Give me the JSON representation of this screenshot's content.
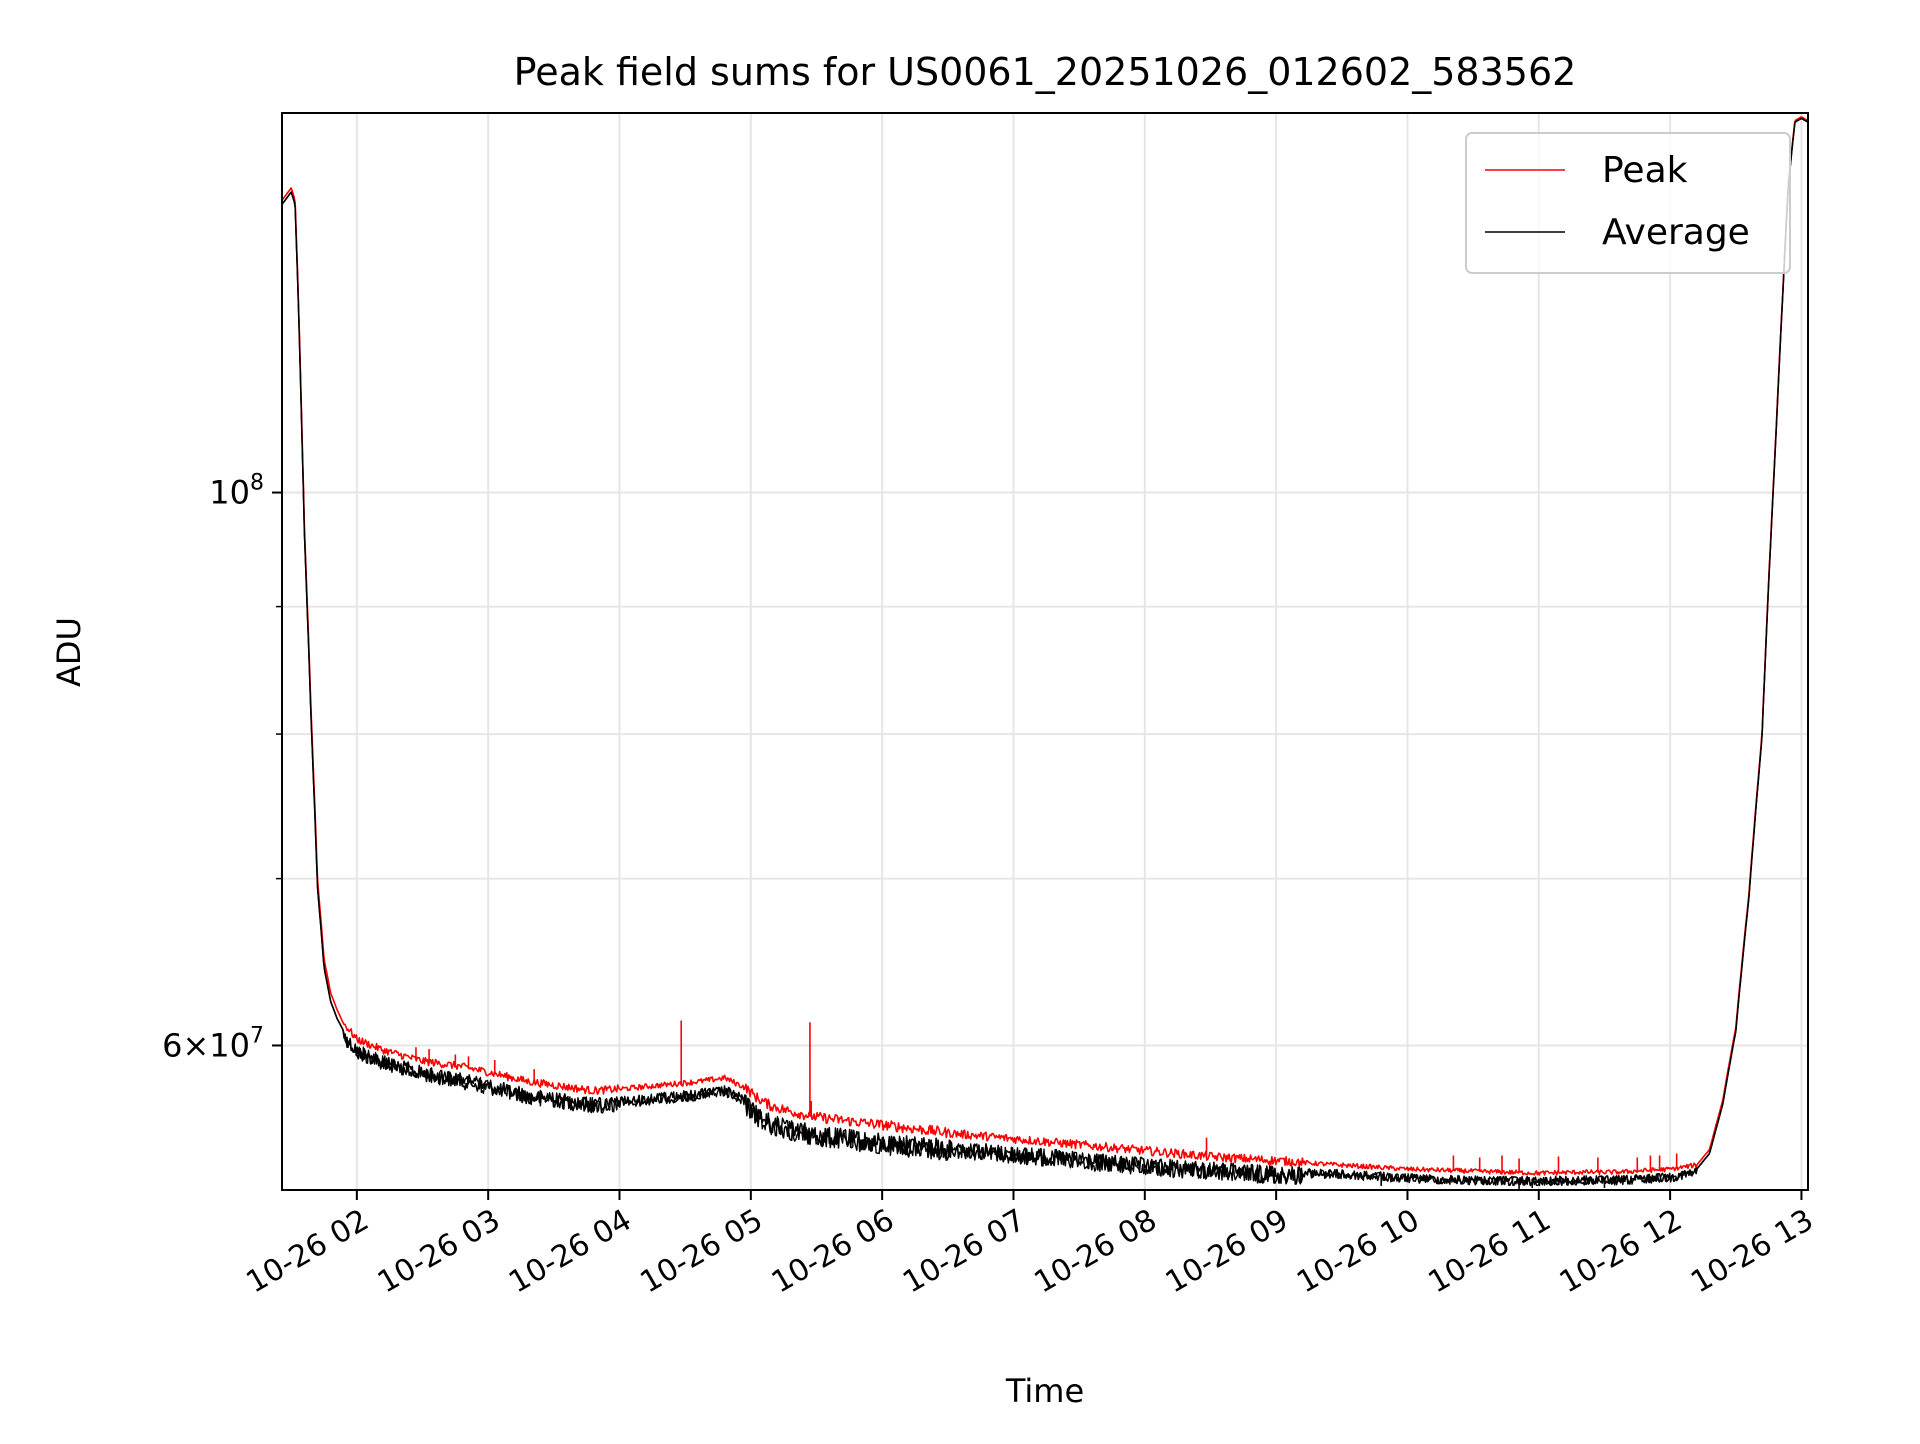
{
  "chart_data": {
    "type": "line",
    "title": "Peak field sums for US0061_20251026_012602_583562",
    "xlabel": "Time",
    "ylabel": "ADU",
    "yscale": "log",
    "xlim": [
      1.43,
      13.05
    ],
    "ylim": [
      52500000,
      142000000
    ],
    "grid": true,
    "legend_position": "top-right",
    "x_ticks": [
      {
        "value": 2,
        "label": "10-26 02"
      },
      {
        "value": 3,
        "label": "10-26 03"
      },
      {
        "value": 4,
        "label": "10-26 04"
      },
      {
        "value": 5,
        "label": "10-26 05"
      },
      {
        "value": 6,
        "label": "10-26 06"
      },
      {
        "value": 7,
        "label": "10-26 07"
      },
      {
        "value": 8,
        "label": "10-26 08"
      },
      {
        "value": 9,
        "label": "10-26 09"
      },
      {
        "value": 10,
        "label": "10-26 10"
      },
      {
        "value": 11,
        "label": "10-26 11"
      },
      {
        "value": 12,
        "label": "10-26 12"
      },
      {
        "value": 13,
        "label": "10-26 13"
      }
    ],
    "y_ticks_major": [
      {
        "value": 100000000,
        "base": "10",
        "exp": "8"
      },
      {
        "value": 60000000,
        "base": "6×10",
        "exp": "7"
      }
    ],
    "y_ticks_minor": [
      70000000,
      80000000,
      90000000
    ],
    "series": [
      {
        "name": "Peak",
        "color": "#ff0000",
        "x": [
          1.43,
          1.5,
          1.53,
          1.56,
          1.6,
          1.65,
          1.7,
          1.75,
          1.8,
          1.85,
          1.9,
          2.0,
          2.2,
          2.5,
          2.8,
          3.0,
          3.3,
          3.6,
          3.8,
          4.0,
          4.3,
          4.6,
          4.8,
          4.95,
          5.05,
          5.15,
          5.3,
          5.5,
          6.0,
          6.5,
          7.0,
          7.5,
          8.0,
          8.5,
          9.0,
          9.5,
          10.0,
          10.5,
          11.0,
          11.3,
          11.6,
          12.0,
          12.2,
          12.3,
          12.4,
          12.5,
          12.6,
          12.7,
          12.75,
          12.8,
          12.85,
          12.9,
          12.95,
          13.0,
          13.05
        ],
        "y": [
          131000000,
          132500000,
          131000000,
          117000000,
          97000000,
          82000000,
          70000000,
          65000000,
          63000000,
          62000000,
          61200000,
          60300000,
          59700000,
          59100000,
          58800000,
          58500000,
          58000000,
          57700000,
          57500000,
          57600000,
          57800000,
          58000000,
          58200000,
          57700000,
          57100000,
          56700000,
          56400000,
          56100000,
          55700000,
          55300000,
          55000000,
          54700000,
          54400000,
          54100000,
          53900000,
          53700000,
          53500000,
          53400000,
          53300000,
          53350000,
          53350000,
          53500000,
          53700000,
          54500000,
          57000000,
          61000000,
          69000000,
          80000000,
          92000000,
          104000000,
          118000000,
          133000000,
          141000000,
          141500000,
          141000000
        ]
      },
      {
        "name": "Average",
        "color": "#000000",
        "x": [
          1.43,
          1.5,
          1.53,
          1.56,
          1.6,
          1.65,
          1.7,
          1.75,
          1.8,
          1.85,
          1.9,
          2.0,
          2.2,
          2.5,
          2.8,
          3.0,
          3.3,
          3.6,
          3.8,
          4.0,
          4.3,
          4.6,
          4.8,
          4.95,
          5.05,
          5.15,
          5.3,
          5.5,
          6.0,
          6.5,
          7.0,
          7.5,
          8.0,
          8.5,
          9.0,
          9.5,
          10.0,
          10.5,
          11.0,
          11.3,
          11.6,
          12.0,
          12.2,
          12.3,
          12.4,
          12.5,
          12.6,
          12.7,
          12.75,
          12.8,
          12.85,
          12.9,
          12.95,
          13.0,
          13.05
        ],
        "y": [
          130500000,
          132000000,
          130500000,
          116500000,
          96500000,
          81500000,
          69500000,
          64500000,
          62500000,
          61500000,
          60800000,
          59900000,
          59300000,
          58700000,
          58300000,
          58000000,
          57500000,
          57200000,
          57000000,
          57100000,
          57300000,
          57500000,
          57700000,
          57200000,
          56500000,
          56100000,
          55800000,
          55500000,
          55100000,
          54800000,
          54500000,
          54200000,
          53900000,
          53700000,
          53500000,
          53400000,
          53200000,
          53100000,
          53050000,
          53100000,
          53100000,
          53250000,
          53500000,
          54300000,
          56800000,
          60800000,
          68800000,
          79800000,
          91800000,
          103800000,
          117800000,
          132800000,
          140800000,
          141300000,
          140800000
        ]
      }
    ],
    "noise": [
      {
        "x0": 1.9,
        "x1": 4.0,
        "amp": 700000
      },
      {
        "x0": 4.0,
        "x1": 4.95,
        "amp": 500000
      },
      {
        "x0": 4.95,
        "x1": 6.5,
        "amp": 900000
      },
      {
        "x0": 6.5,
        "x1": 9.2,
        "amp": 750000
      },
      {
        "x0": 9.2,
        "x1": 12.2,
        "amp": 380000
      }
    ],
    "peak_spikes": [
      {
        "x": 2.45,
        "y": 59900000
      },
      {
        "x": 2.55,
        "y": 59800000
      },
      {
        "x": 2.75,
        "y": 59500000
      },
      {
        "x": 2.85,
        "y": 59400000
      },
      {
        "x": 3.05,
        "y": 59200000
      },
      {
        "x": 3.35,
        "y": 58700000
      },
      {
        "x": 4.47,
        "y": 61400000
      },
      {
        "x": 5.45,
        "y": 61300000
      },
      {
        "x": 5.46,
        "y": 57000000
      },
      {
        "x": 8.47,
        "y": 55100000
      },
      {
        "x": 10.35,
        "y": 54200000
      },
      {
        "x": 10.55,
        "y": 54100000
      },
      {
        "x": 10.72,
        "y": 54200000
      },
      {
        "x": 10.85,
        "y": 54050000
      },
      {
        "x": 11.15,
        "y": 54150000
      },
      {
        "x": 11.45,
        "y": 54100000
      },
      {
        "x": 11.75,
        "y": 54100000
      },
      {
        "x": 11.85,
        "y": 54200000
      },
      {
        "x": 11.92,
        "y": 54200000
      },
      {
        "x": 12.05,
        "y": 54300000
      }
    ],
    "average_dips": [
      {
        "x": 8.35,
        "y": 53200000
      },
      {
        "x": 9.8,
        "y": 52700000
      },
      {
        "x": 10.85,
        "y": 52500000
      },
      {
        "x": 10.95,
        "y": 52600000
      },
      {
        "x": 11.5,
        "y": 52600000
      }
    ]
  }
}
